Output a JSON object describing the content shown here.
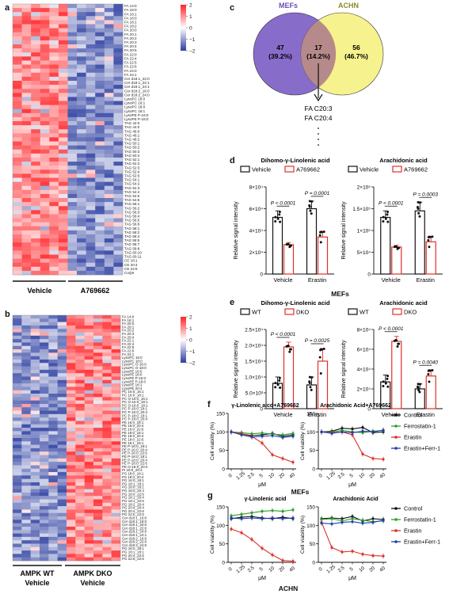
{
  "panels": {
    "a": "a",
    "b": "b",
    "c": "c",
    "d": "d",
    "e": "e",
    "f": "f",
    "g": "g"
  },
  "colors": {
    "heat_high": "#d7191c",
    "heat_mid": "#ffffff",
    "heat_low": "#2c3e9e",
    "venn_left": "#7b5cc4",
    "venn_right": "#f5f07a",
    "vehicle": "#111111",
    "treated": "#e0302a",
    "control": "#111111",
    "ferrostatin": "#2e9e2e",
    "erastin": "#d8322a",
    "combo": "#1f3fa8"
  },
  "heatmap_a": {
    "scale_ticks": [
      "2",
      "1",
      "0",
      "−1",
      "−2"
    ],
    "labels": [
      "FA 14:0",
      "FA 16:0",
      "FA 16:1",
      "FA 18:0",
      "FA 18:1",
      "FA 18:2",
      "FA 20:0",
      "FA 20:1",
      "FA 20:2",
      "FA 20:3",
      "FA 20:4",
      "FA 20:5",
      "FA 22:0",
      "FA 22:4",
      "FA 22:5",
      "FA 22:6",
      "FA 24:0",
      "FA 24:1",
      "Cer d18:1_22:0",
      "Cer d18:1_22:1",
      "Cer d18:1_24:1",
      "Cer d18:2_16:0",
      "Cer d18:2_24:0",
      "LysoPC 16:0",
      "LysoPC 16:1",
      "LysoPC 18:0",
      "LysoPC 18:1",
      "LysoPE P-16:0",
      "LysoPE P-18:0",
      "TAG 42:0",
      "TAG 44:0",
      "TAG 46:0",
      "TAG 46:1",
      "TAG 48:2",
      "TAG 50:1",
      "TAG 50:2",
      "TAG 50:3",
      "TAG 50:4",
      "TAG 52:1",
      "TAG 52:2",
      "TAG 52:3",
      "TAG 52:4",
      "TAG 52:5",
      "TAG 54:1",
      "TAG 54:2",
      "TAG 54:3",
      "TAG 54:4",
      "TAG 54:5",
      "TAG 54:6",
      "TAG 56:1",
      "TAG 56:2",
      "TAG 56:3",
      "TAG 56:4",
      "TAG 56:5",
      "TAG 56:6",
      "TAG 58:1",
      "TAG 58:2",
      "TAG 58:4",
      "TAG 58:5",
      "TAG 58:7",
      "TAG 58:8",
      "TAG 60:10",
      "TAG 60:11",
      "CE 18:1",
      "CE 20:4",
      "CE 22:6",
      "CoQ9"
    ],
    "group_labels": [
      "Vehicle",
      "A769662"
    ]
  },
  "heatmap_b": {
    "scale_ticks": [
      "2",
      "1",
      "0",
      "−1",
      "−2"
    ],
    "labels": [
      "FA 14:0",
      "FA 16:1",
      "FA 20:0",
      "FA 20:1",
      "FA 20:2",
      "FA 20:3",
      "FA 20:4",
      "FA 22:1",
      "FA 22:4",
      "FA 22:5",
      "FA 22:6",
      "FA 24:1",
      "LysoPC 16:0",
      "LysoPC 18:0",
      "LysoPC O-16:0",
      "LysoPC O-18:0",
      "LysoPE 16:0",
      "LysoPE 18:0",
      "LysoPE P-16:0",
      "LysoPE P-18:0",
      "LysoPE 18:1",
      "LysoPE 20:4",
      "PC 16:0_16:1",
      "PC 16:0_18:1",
      "PC O-16:0_16:1",
      "PC O-16:0_18:1",
      "PC O-18:0_18:1",
      "PC P-16:0_18:1",
      "PC P-16:0_20:4",
      "PC P-18:0_18:1",
      "PC P-18:0_20:4",
      "PE 16:0_18:1",
      "PE 16:0_20:4",
      "PE 16:0_22:6",
      "PE 18:0_18:1",
      "PE 18:0_20:4",
      "PE 18:0_22:6",
      "PE 18:1_18:1",
      "PE P-16:0_18:1",
      "PE P-16:0_20:4",
      "PE P-16:0_22:6",
      "PE P-18:0_18:1",
      "PE P-18:0_20:4",
      "PE P-18:0_22:6",
      "PE O-18:0_20:4",
      "PI 18:0_20:4",
      "PS 18:0_18:1",
      "PS 18:0_20:4",
      "PG 16:0_18:1",
      "PG 18:1_18:1",
      "PG 18:0_18:1",
      "PG 18:0_20:4",
      "PG 18:0_22:6",
      "PG 18:1_20:4",
      "PG 18:1_22:6",
      "PG 18:2_20:4",
      "PG 20:4_20:4",
      "PG 20:4_22:6",
      "PG 22:6_22:6",
      "Cer d18:1_16:0",
      "Cer d18:1_18:0",
      "Cer d18:1_20:0",
      "Cer d18:1_22:0",
      "Cer d18:1_24:0",
      "Cer d18:1_24:1",
      "Cer d18:2_16:0",
      "Cer d18:2_22:0",
      "Cer d18:2_24:0",
      "PG 16:0_18:1",
      "PG 18:1_18:1",
      "PG 20:4_22:6",
      "PG 22:6_22:6"
    ],
    "group_labels": [
      [
        "AMPK WT",
        "Vehicle"
      ],
      [
        "AMPK DKO",
        "Vehicle"
      ]
    ]
  },
  "venn": {
    "left_title": "MEFs",
    "right_title": "ACHN",
    "left_count": "47",
    "left_pct": "(39.2%)",
    "mid_count": "17",
    "mid_pct": "(14.2%)",
    "right_count": "56",
    "right_pct": "(46.7%)",
    "callout": [
      "FA C20:3",
      "FA C20:4"
    ]
  },
  "chart_data": [
    {
      "panel": "d",
      "type": "bar",
      "title": "Dihomo-γ-Linolenic acid",
      "legend": [
        "Vehicle",
        "A769662"
      ],
      "categories": [
        "Vehicle",
        "Erastin"
      ],
      "ylabel": "Relative signal intensity",
      "ylim": [
        0,
        80000
      ],
      "yticks": [
        0,
        20000,
        40000,
        60000,
        80000
      ],
      "ytick_labels": [
        "0",
        "2×10⁴",
        "4×10⁴",
        "6×10⁴",
        "8×10⁴"
      ],
      "series": [
        {
          "name": "Vehicle",
          "values": [
            52000,
            60000
          ],
          "err": [
            6000,
            7000
          ]
        },
        {
          "name": "A769662",
          "values": [
            27000,
            34000
          ],
          "err": [
            2000,
            5000
          ]
        }
      ],
      "pvalues": [
        "P < 0.0001",
        "P = 0.0001"
      ],
      "caption": "MEFs"
    },
    {
      "panel": "d2",
      "type": "bar",
      "title": "Arachidonic acid",
      "legend": [
        "Vehicle",
        "A769662"
      ],
      "categories": [
        "Vehicle",
        "Erastin"
      ],
      "ylabel": "Relative signal intensity",
      "ylim": [
        0,
        200000
      ],
      "yticks": [
        0,
        50000,
        100000,
        150000,
        200000
      ],
      "ytick_labels": [
        "0",
        "5×10⁴",
        "1×10⁵",
        "1.5×10⁵",
        "2×10⁵"
      ],
      "series": [
        {
          "name": "Vehicle",
          "values": [
            130000,
            145000
          ],
          "err": [
            15000,
            20000
          ]
        },
        {
          "name": "A769662",
          "values": [
            62000,
            74000
          ],
          "err": [
            4000,
            12000
          ]
        }
      ],
      "pvalues": [
        "P < 0.0001",
        "P = 0.0003"
      ]
    },
    {
      "panel": "e",
      "type": "bar",
      "title": "Dihomo-γ-Linolenic acid",
      "legend": [
        "WT",
        "DKO"
      ],
      "categories": [
        "Vehicle",
        "Erastin"
      ],
      "ylabel": "Relative signal intensity",
      "ylim": [
        0,
        25000
      ],
      "yticks": [
        0,
        5000,
        10000,
        15000,
        20000,
        25000
      ],
      "ytick_labels": [
        "0",
        "5.0×10³",
        "1.0×10⁴",
        "1.5×10⁴",
        "2.0×10⁴",
        "2.5×10⁴"
      ],
      "series": [
        {
          "name": "WT",
          "values": [
            8000,
            7500
          ],
          "err": [
            2000,
            2500
          ]
        },
        {
          "name": "DKO",
          "values": [
            19500,
            15000
          ],
          "err": [
            1500,
            4000
          ]
        }
      ],
      "pvalues": [
        "P < 0.0001",
        "P = 0.0025"
      ],
      "caption": "ACHN"
    },
    {
      "panel": "e2",
      "type": "bar",
      "title": "Arachidonic acid",
      "legend": [
        "WT",
        "DKO"
      ],
      "categories": [
        "Vehicle",
        "Erastin"
      ],
      "ylabel": "Relative signal intensity",
      "ylim": [
        0,
        80000
      ],
      "yticks": [
        0,
        20000,
        40000,
        60000,
        80000
      ],
      "ytick_labels": [
        "0",
        "2×10⁴",
        "4×10⁴",
        "6×10⁴",
        "8×10⁴"
      ],
      "series": [
        {
          "name": "WT",
          "values": [
            27000,
            20000
          ],
          "err": [
            7000,
            5000
          ]
        },
        {
          "name": "DKO",
          "values": [
            68000,
            33000
          ],
          "err": [
            5000,
            6000
          ]
        }
      ],
      "pvalues": [
        "P < 0.0001",
        "P = 0.0040"
      ]
    },
    {
      "panel": "f",
      "type": "line",
      "title": "γ-Linolenic aicd+A769662",
      "x": [
        "0",
        "1.25",
        "2.5",
        "5",
        "10",
        "20",
        "40"
      ],
      "xlabel": "μM",
      "ylabel": "Cell viability (%)",
      "ylim": [
        0,
        150
      ],
      "yticks": [
        0,
        50,
        100,
        150
      ],
      "series": [
        {
          "name": "Control",
          "values": [
            100,
            95,
            90,
            92,
            96,
            88,
            92
          ]
        },
        {
          "name": "Ferrostatin-1",
          "values": [
            100,
            98,
            95,
            97,
            94,
            92,
            96
          ]
        },
        {
          "name": "Erastin",
          "values": [
            100,
            95,
            88,
            70,
            38,
            28,
            18
          ]
        },
        {
          "name": "Erastin+Ferr-1",
          "values": [
            100,
            92,
            86,
            88,
            90,
            85,
            88
          ]
        }
      ],
      "caption": "MEFs"
    },
    {
      "panel": "f2",
      "type": "line",
      "title": "Arachidonic Acid+A769662",
      "x": [
        "0",
        "1.25",
        "2.5",
        "5",
        "10",
        "20",
        "40"
      ],
      "xlabel": "μM",
      "ylabel": "Cell viability (%)",
      "ylim": [
        0,
        150
      ],
      "yticks": [
        0,
        50,
        100,
        150
      ],
      "series": [
        {
          "name": "Control",
          "values": [
            100,
            102,
            110,
            108,
            112,
            98,
            100
          ]
        },
        {
          "name": "Ferrostatin-1",
          "values": [
            100,
            100,
            104,
            100,
            98,
            102,
            104
          ]
        },
        {
          "name": "Erastin",
          "values": [
            100,
            98,
            100,
            92,
            40,
            28,
            26
          ]
        },
        {
          "name": "Erastin+Ferr-1",
          "values": [
            100,
            96,
            100,
            98,
            102,
            100,
            105
          ]
        }
      ]
    },
    {
      "panel": "g",
      "type": "line",
      "title": "γ-Linolenic acid",
      "x": [
        "0",
        "1.25",
        "2.5",
        "5",
        "10",
        "20",
        "40"
      ],
      "xlabel": "μM",
      "ylabel": "Cell viability (%)",
      "ylim": [
        0,
        150
      ],
      "yticks": [
        0,
        50,
        100,
        150
      ],
      "series": [
        {
          "name": "Control",
          "values": [
            118,
            122,
            124,
            120,
            118,
            122,
            118
          ]
        },
        {
          "name": "Ferrostatin-1",
          "values": [
            126,
            130,
            134,
            138,
            140,
            138,
            142
          ]
        },
        {
          "name": "Erastin",
          "values": [
            90,
            80,
            62,
            38,
            20,
            5,
            3
          ]
        },
        {
          "name": "Erastin+Ferr-1",
          "values": [
            120,
            118,
            120,
            118,
            120,
            118,
            120
          ]
        }
      ],
      "caption": "ACHN"
    },
    {
      "panel": "g2",
      "type": "line",
      "title": "Arachidonic Acid",
      "x": [
        "0",
        "1.25",
        "2.5",
        "5",
        "10",
        "20",
        "40"
      ],
      "xlabel": "μM",
      "ylabel": "Cell viability (%)",
      "ylim": [
        0,
        150
      ],
      "yticks": [
        0,
        50,
        100,
        150
      ],
      "series": [
        {
          "name": "Control",
          "values": [
            118,
            120,
            118,
            124,
            112,
            118,
            116
          ]
        },
        {
          "name": "Ferrostatin-1",
          "values": [
            116,
            118,
            112,
            118,
            114,
            110,
            112
          ]
        },
        {
          "name": "Erastin",
          "values": [
            108,
            40,
            28,
            30,
            22,
            18,
            17
          ]
        },
        {
          "name": "Erastin+Ferr-1",
          "values": [
            106,
            104,
            108,
            110,
            106,
            108,
            114
          ]
        }
      ]
    }
  ],
  "line_legend": [
    "Control",
    "Ferrostatin-1",
    "Erastin",
    "Erastin+Ferr-1"
  ]
}
